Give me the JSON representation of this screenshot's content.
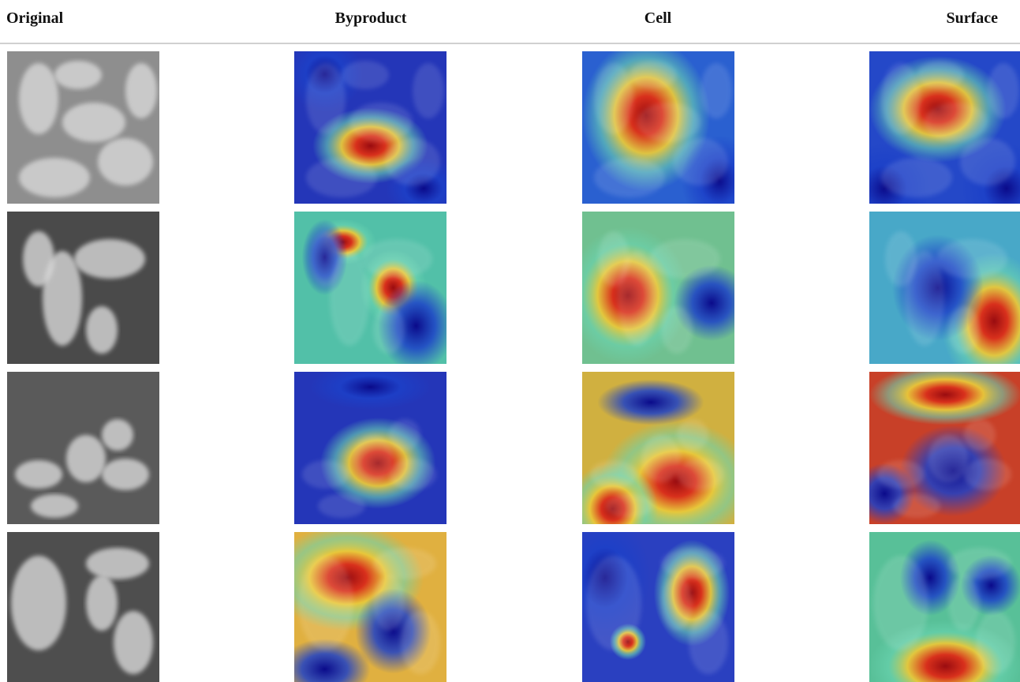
{
  "header": {
    "columns": [
      "Original",
      "Byproduct",
      "Cell",
      "Surface"
    ]
  }
}
